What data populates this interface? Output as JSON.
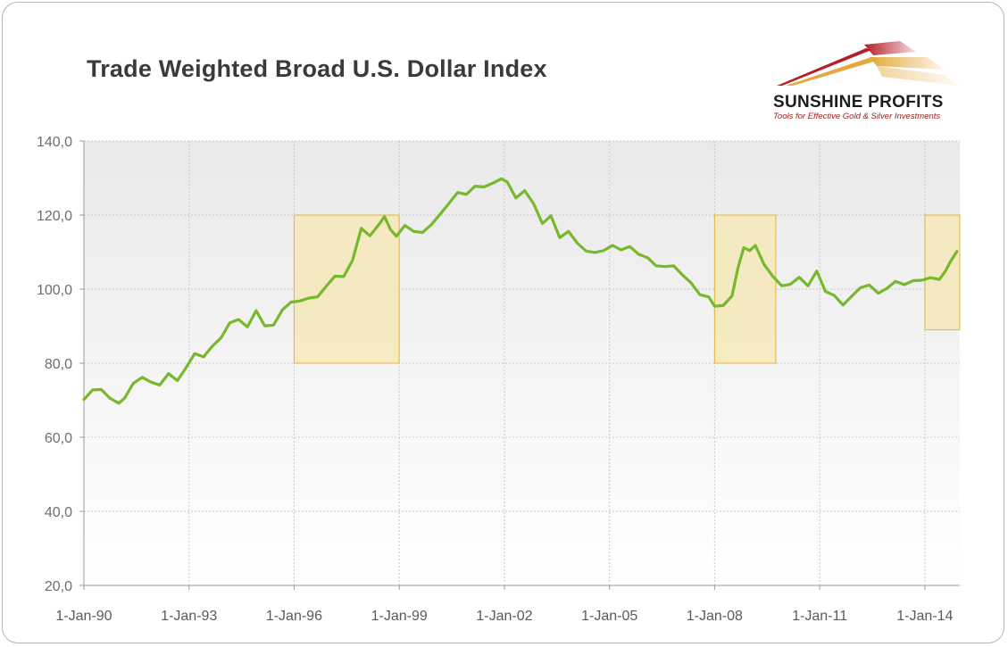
{
  "logo": {
    "name": "SUNSHINE PROFITS",
    "tagline": "Tools for Effective Gold & Silver Investments"
  },
  "colors": {
    "line": "#77b82d",
    "highlight_fill": "#f5e7b9",
    "highlight_stroke": "#e2b43a",
    "grid": "#c8c8c8",
    "logo_red": "#b2202a",
    "logo_gold": "#e3a93c"
  },
  "chart_data": {
    "type": "line",
    "title": "Trade Weighted Broad U.S. Dollar Index",
    "xlabel": "",
    "ylabel": "",
    "ylim": [
      20,
      140
    ],
    "yticks": [
      20,
      40,
      60,
      80,
      100,
      120,
      140
    ],
    "ytick_labels": [
      "20,0",
      "40,0",
      "60,0",
      "80,0",
      "100,0",
      "120,0",
      "140,0"
    ],
    "xlim": [
      "1990-01-01",
      "2014-12-31"
    ],
    "xticks": [
      "1990-01-01",
      "1993-01-01",
      "1996-01-01",
      "1999-01-01",
      "2002-01-01",
      "2005-01-01",
      "2008-01-01",
      "2011-01-01",
      "2014-01-01"
    ],
    "xtick_labels": [
      "1-Jan-90",
      "1-Jan-93",
      "1-Jan-96",
      "1-Jan-99",
      "1-Jan-02",
      "1-Jan-05",
      "1-Jan-08",
      "1-Jan-11",
      "1-Jan-14"
    ],
    "grid": true,
    "legend": "none",
    "series": [
      {
        "x": [
          "1990-01-01",
          "1990-04-01",
          "1990-07-01",
          "1990-10-01",
          "1991-01-01",
          "1991-03-01",
          "1991-06-01",
          "1991-09-01",
          "1991-12-01",
          "1992-03-01",
          "1992-06-01",
          "1992-09-01",
          "1992-12-01",
          "1993-03-01",
          "1993-06-01",
          "1993-09-01",
          "1993-12-01",
          "1994-03-01",
          "1994-06-01",
          "1994-09-01",
          "1994-12-01",
          "1995-03-01",
          "1995-06-01",
          "1995-09-01",
          "1995-12-01",
          "1996-03-01",
          "1996-06-01",
          "1996-09-01",
          "1996-12-01",
          "1997-03-01",
          "1997-06-01",
          "1997-09-01",
          "1997-12-01",
          "1998-03-01",
          "1998-06-01",
          "1998-08-01",
          "1998-10-01",
          "1998-12-01",
          "1999-03-01",
          "1999-06-01",
          "1999-09-01",
          "1999-12-01",
          "2000-03-01",
          "2000-06-01",
          "2000-09-01",
          "2000-12-01",
          "2001-03-01",
          "2001-06-01",
          "2001-09-01",
          "2001-12-01",
          "2002-02-01",
          "2002-05-01",
          "2002-08-01",
          "2002-11-01",
          "2003-02-01",
          "2003-05-01",
          "2003-08-01",
          "2003-11-01",
          "2004-02-01",
          "2004-05-01",
          "2004-08-01",
          "2004-11-01",
          "2005-02-01",
          "2005-05-01",
          "2005-08-01",
          "2005-11-01",
          "2006-02-01",
          "2006-05-01",
          "2006-08-01",
          "2006-11-01",
          "2007-02-01",
          "2007-05-01",
          "2007-08-01",
          "2007-11-01",
          "2008-01-01",
          "2008-04-01",
          "2008-07-01",
          "2008-09-01",
          "2008-11-01",
          "2009-01-01",
          "2009-03-01",
          "2009-06-01",
          "2009-09-01",
          "2009-12-01",
          "2010-03-01",
          "2010-06-01",
          "2010-09-01",
          "2010-12-01",
          "2011-03-01",
          "2011-06-01",
          "2011-09-01",
          "2011-12-01",
          "2012-03-01",
          "2012-06-01",
          "2012-09-01",
          "2012-12-01",
          "2013-03-01",
          "2013-06-01",
          "2013-09-01",
          "2013-12-01",
          "2014-03-01",
          "2014-06-01",
          "2014-08-01",
          "2014-10-01",
          "2014-12-01"
        ],
        "y": [
          70.2,
          72.8,
          72.9,
          70.5,
          69.2,
          70.6,
          74.6,
          76.2,
          74.9,
          74.1,
          77.2,
          75.3,
          78.8,
          82.6,
          81.7,
          84.6,
          86.9,
          90.9,
          91.8,
          89.8,
          94.2,
          90.1,
          90.3,
          94.4,
          96.5,
          96.8,
          97.6,
          97.9,
          100.8,
          103.5,
          103.4,
          107.8,
          116.4,
          114.4,
          117.4,
          119.6,
          116.1,
          114.3,
          117.2,
          115.6,
          115.3,
          117.4,
          120.2,
          123.1,
          126.1,
          125.6,
          127.8,
          127.6,
          128.6,
          129.8,
          128.9,
          124.6,
          126.6,
          123.1,
          117.7,
          119.8,
          113.9,
          115.6,
          112.4,
          110.3,
          109.9,
          110.4,
          111.8,
          110.6,
          111.5,
          109.4,
          108.5,
          106.3,
          106.1,
          106.3,
          103.8,
          101.7,
          98.5,
          97.9,
          95.4,
          95.6,
          98.2,
          105.8,
          111.2,
          110.4,
          111.8,
          106.6,
          103.4,
          100.9,
          101.3,
          103.2,
          100.9,
          104.9,
          99.4,
          98.3,
          95.7,
          98.1,
          100.4,
          101.1,
          98.9,
          100.2,
          102.1,
          101.2,
          102.3,
          102.4,
          103.1,
          102.6,
          104.8,
          107.7,
          110.2
        ]
      }
    ],
    "highlights": [
      {
        "x_start": "1996-01-01",
        "x_end": "1998-12-31",
        "y_start": 80,
        "y_end": 120
      },
      {
        "x_start": "2008-01-01",
        "x_end": "2009-09-30",
        "y_start": 80,
        "y_end": 120
      },
      {
        "x_start": "2014-01-01",
        "x_end": "2014-12-31",
        "y_start": 89,
        "y_end": 120
      }
    ]
  }
}
